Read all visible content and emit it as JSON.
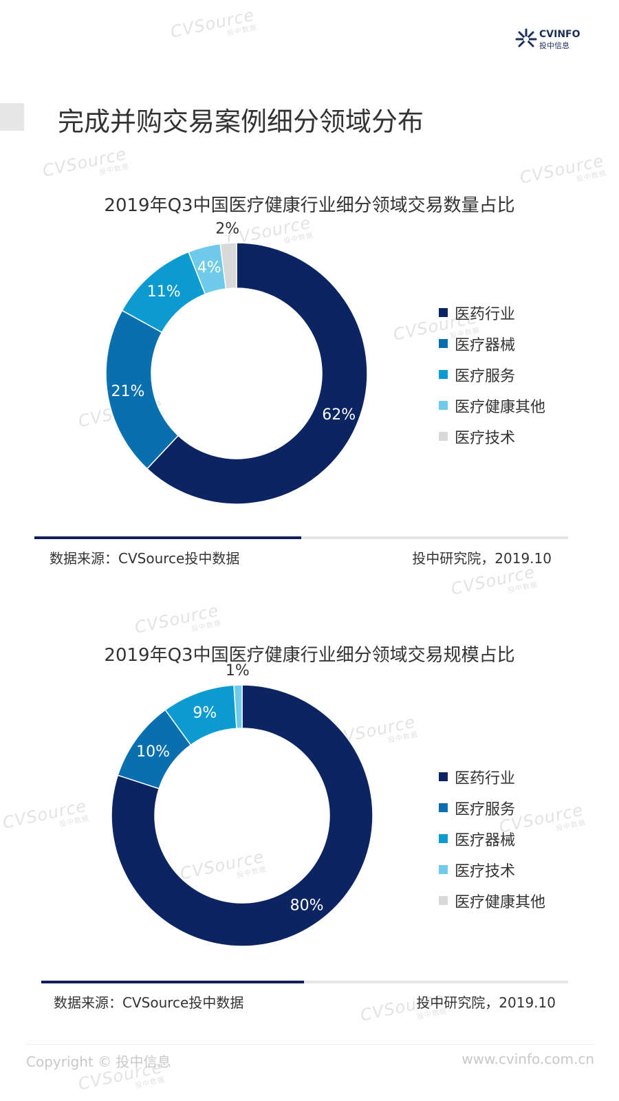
{
  "header": {
    "logo_name": "CVINFO",
    "logo_cn": "投中信息",
    "page_title": "完成并购交易案例细分领域分布"
  },
  "watermark": {
    "text": "CVSource",
    "sub": "投中数据"
  },
  "colors": {
    "navy": "#0c2461",
    "blue": "#0a6fae",
    "teal": "#0c9bd0",
    "light": "#6fcbe9",
    "gray": "#d9d9d9"
  },
  "chart_data": [
    {
      "type": "pie",
      "donut": true,
      "title": "2019年Q3中国医疗健康行业细分领域交易数量占比",
      "slices": [
        {
          "label": "医药行业",
          "value": 62,
          "text": "62%",
          "color": "#0c2461"
        },
        {
          "label": "医疗器械",
          "value": 21,
          "text": "21%",
          "color": "#0a6fae"
        },
        {
          "label": "医疗服务",
          "value": 11,
          "text": "11%",
          "color": "#0c9bd0"
        },
        {
          "label": "医疗健康其他",
          "value": 4,
          "text": "4%",
          "color": "#6fcbe9"
        },
        {
          "label": "医疗技术",
          "value": 2,
          "text": "2%",
          "color": "#d9d9d9"
        }
      ],
      "legend_position": "right"
    },
    {
      "type": "pie",
      "donut": true,
      "title": "2019年Q3中国医疗健康行业细分领域交易规模占比",
      "slices": [
        {
          "label": "医药行业",
          "value": 80,
          "text": "80%",
          "color": "#0c2461"
        },
        {
          "label": "医疗服务",
          "value": 10,
          "text": "10%",
          "color": "#0a6fae"
        },
        {
          "label": "医疗器械",
          "value": 9,
          "text": "9%",
          "color": "#0c9bd0"
        },
        {
          "label": "医疗技术",
          "value": 1,
          "text": "1%",
          "color": "#6fcbe9"
        },
        {
          "label": "医疗健康其他",
          "value": 0,
          "text": "",
          "color": "#d9d9d9"
        }
      ],
      "legend_position": "right"
    }
  ],
  "notes": [
    {
      "source": "数据来源：CVSource投中数据",
      "credit": "投中研究院，2019.10"
    },
    {
      "source": "数据来源：CVSource投中数据",
      "credit": "投中研究院，2019.10"
    }
  ],
  "footer": {
    "copyright": "Copyright © 投中信息",
    "url": "www.cvinfo.com.cn"
  }
}
